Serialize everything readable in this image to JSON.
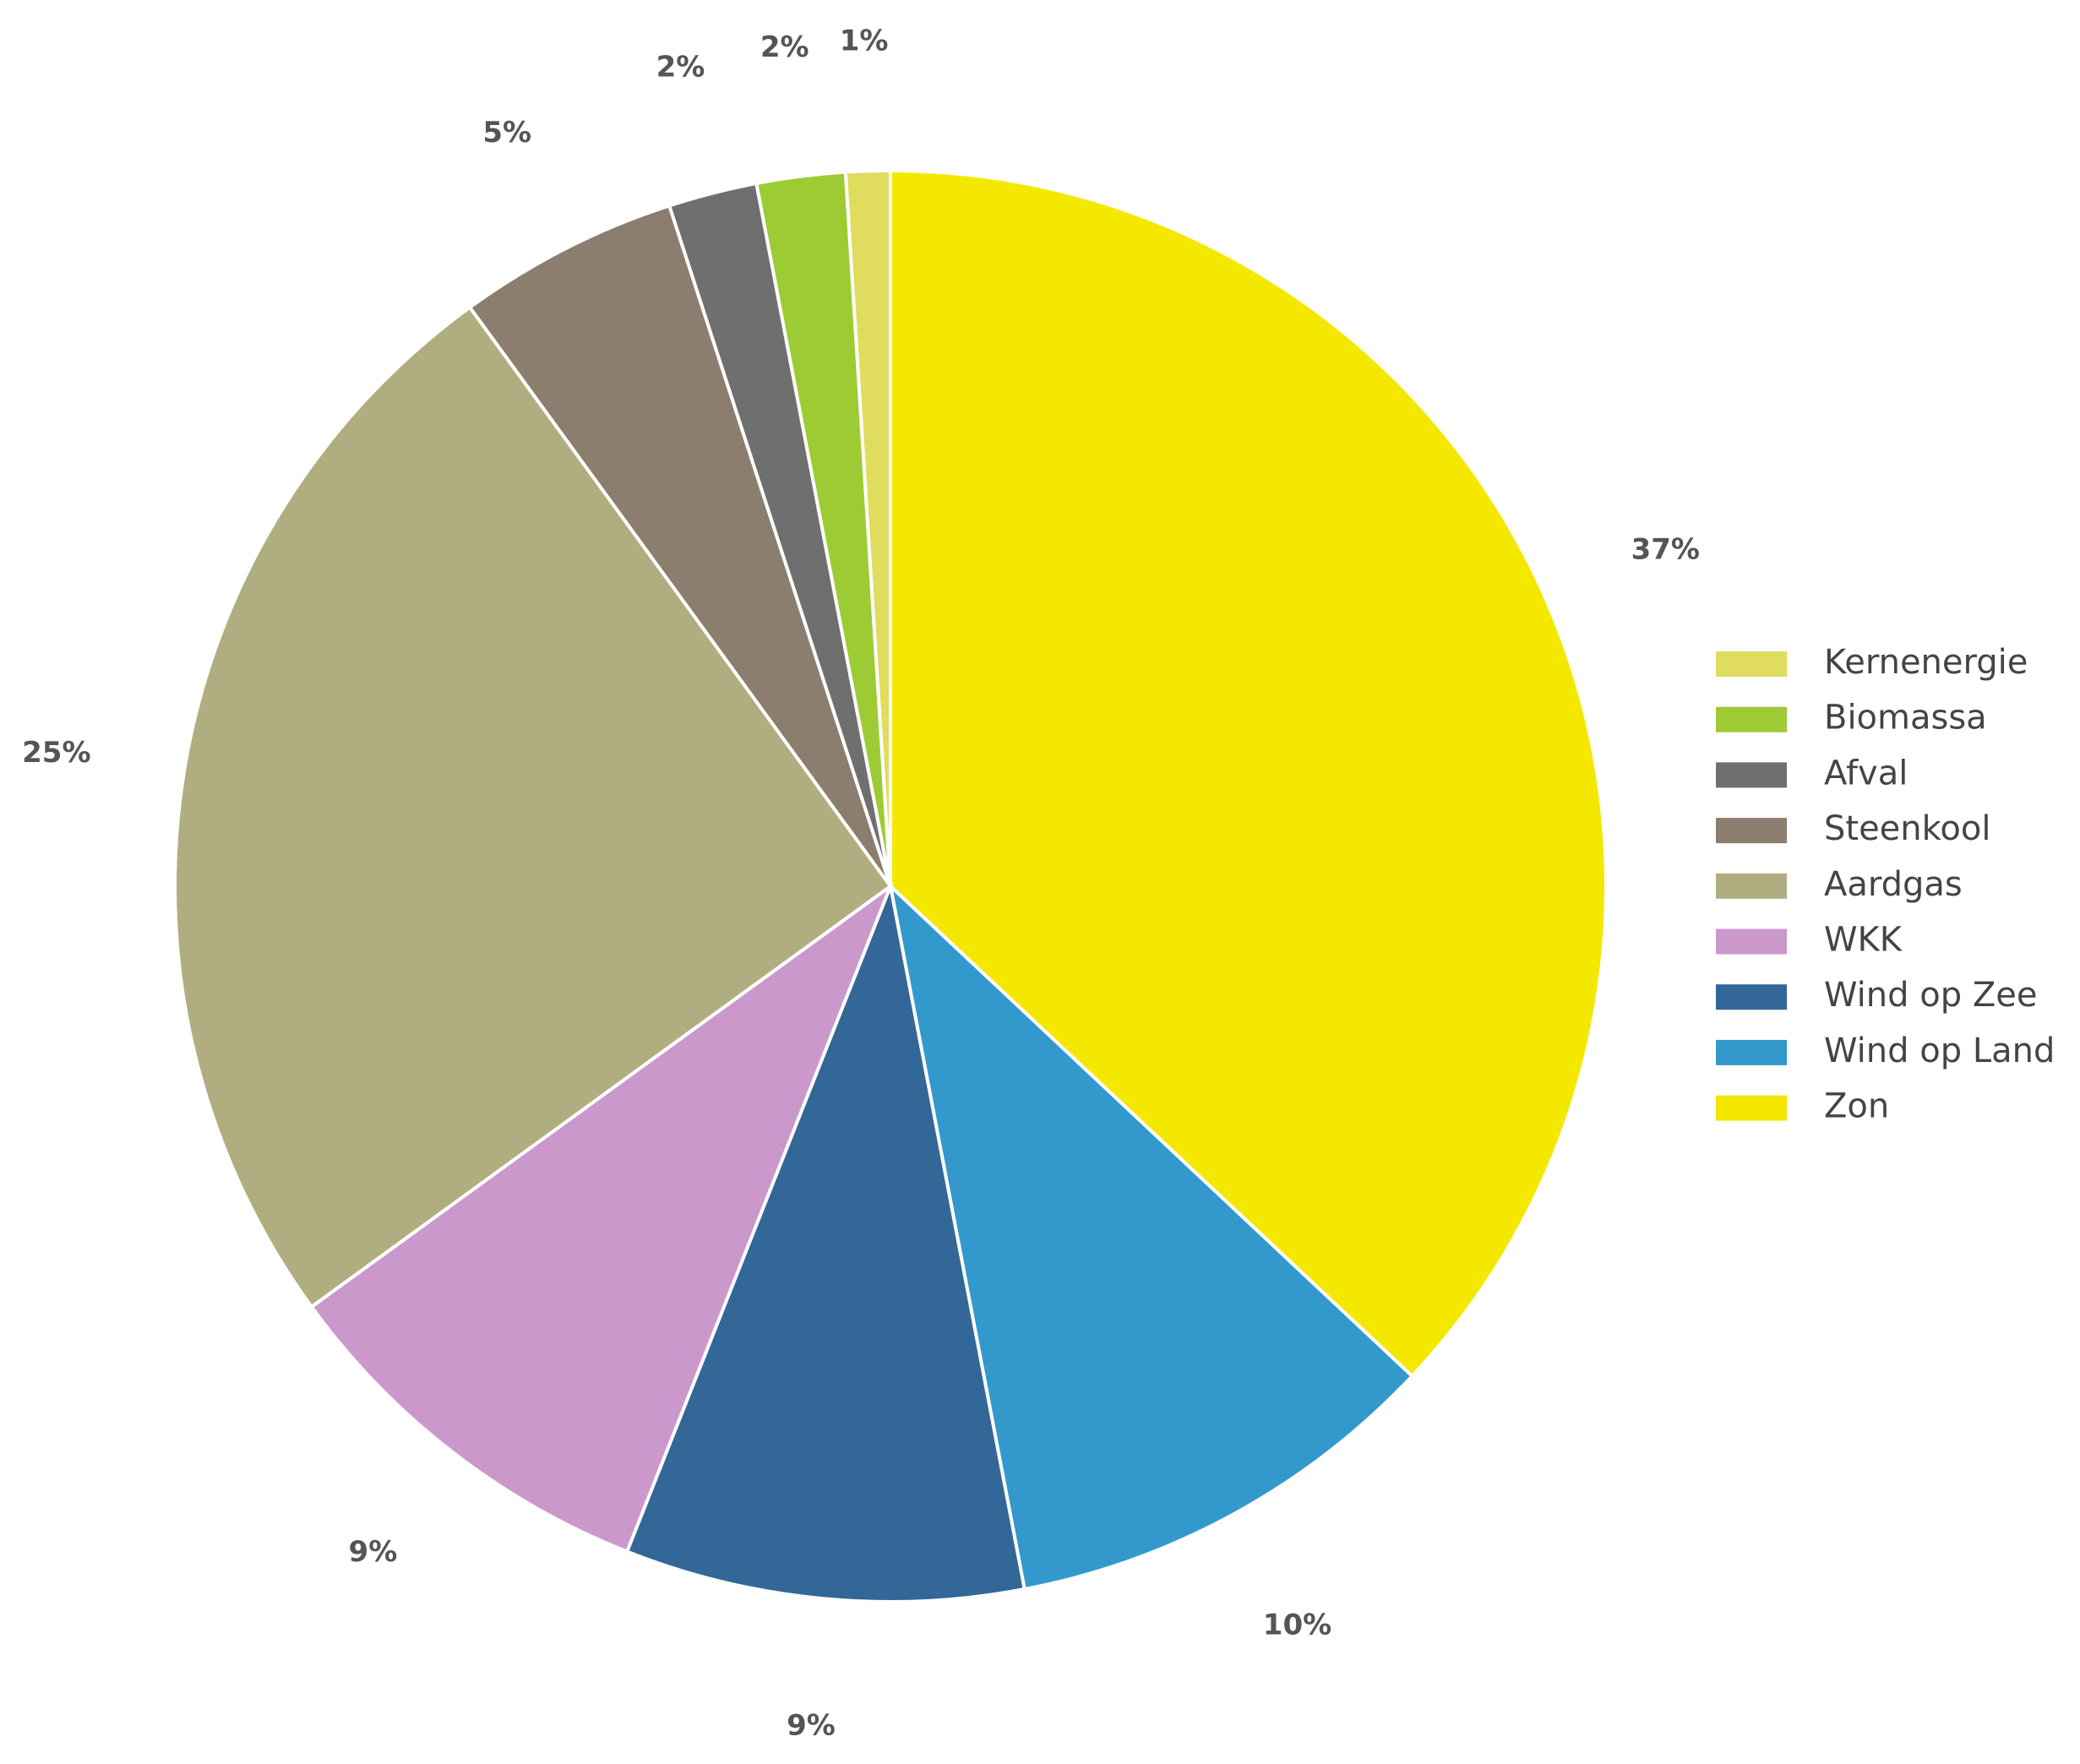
{
  "chart_data": {
    "type": "pie",
    "categories": [
      "Kernenergie",
      "Biomassa",
      "Afval",
      "Steenkool",
      "Aardgas",
      "WKK",
      "Wind op Zee",
      "Wind op Land",
      "Zon"
    ],
    "values": [
      1,
      2,
      2,
      5,
      25,
      9,
      9,
      10,
      37
    ],
    "value_labels": [
      "1%",
      "2%",
      "2%",
      "5%",
      "25%",
      "9%",
      "9%",
      "10%",
      "37%"
    ],
    "colors": [
      "#e0dc5e",
      "#9dcb33",
      "#6f6f6f",
      "#8b7e6e",
      "#b0ae80",
      "#cb98cb",
      "#336797",
      "#3399cc",
      "#f5e800"
    ],
    "legend": "right"
  }
}
